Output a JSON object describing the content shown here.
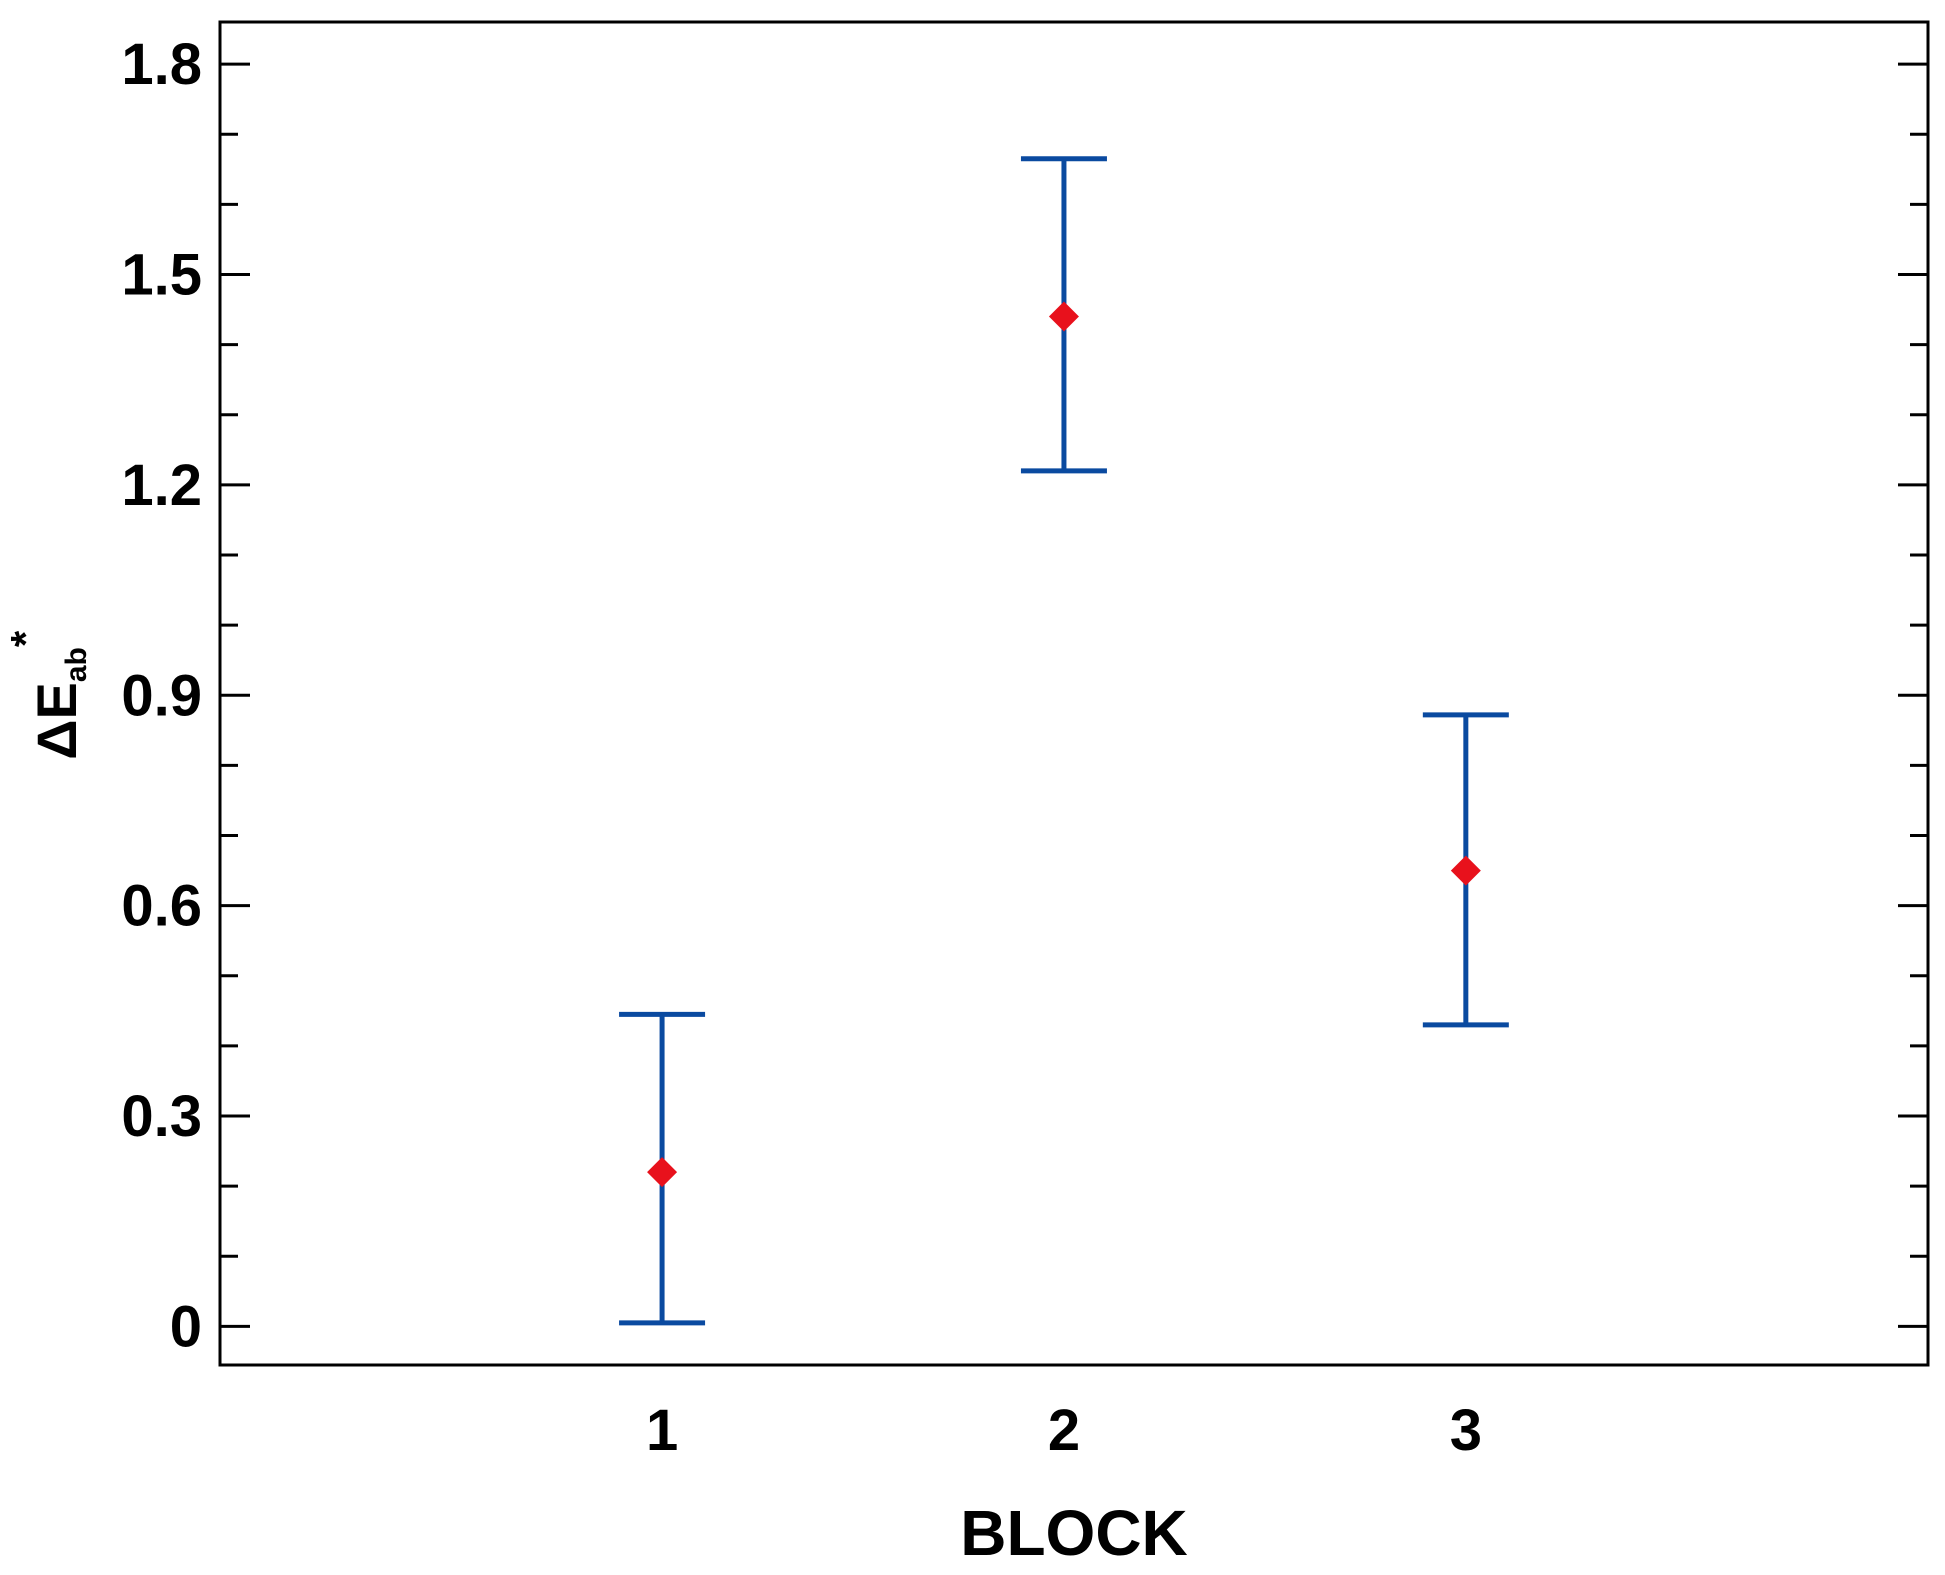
{
  "chart_data": {
    "type": "scatter",
    "title": "",
    "xlabel": "BLOCK",
    "ylabel": {
      "main": "ΔE",
      "subscript": "ab",
      "superscript": "*"
    },
    "categories": [
      "1",
      "2",
      "3"
    ],
    "x": [
      1,
      2,
      3
    ],
    "xlim": [
      -0.1,
      4.15
    ],
    "ylim": [
      -0.055,
      1.86
    ],
    "yticks": [
      0,
      0.3,
      0.6,
      0.9,
      1.2,
      1.5,
      1.8
    ],
    "ytick_labels": [
      "0",
      "0.3",
      "0.6",
      "0.9",
      "1.2",
      "1.5",
      "1.8"
    ],
    "yminor_step": 0.1,
    "grid": false,
    "series": [
      {
        "values": [
          0.22,
          1.44,
          0.65
        ],
        "error_low": [
          0.005,
          1.22,
          0.43
        ],
        "error_high": [
          0.445,
          1.665,
          0.872
        ],
        "marker_color": "#e8111c",
        "errorbar_color": "#0a4aa0"
      }
    ]
  }
}
